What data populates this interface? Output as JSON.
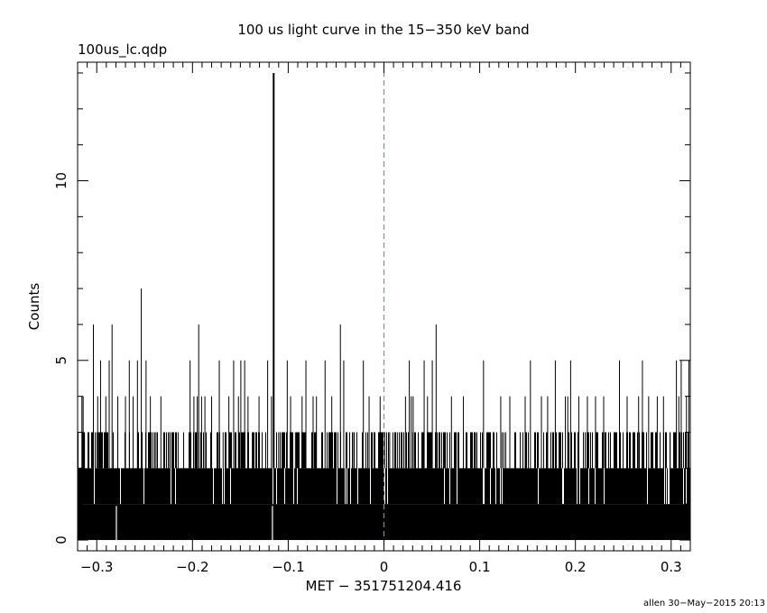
{
  "chart_data": {
    "type": "bar",
    "title": "100 us light curve in the 15−350 keV band",
    "file_label": "100us_lc.qdp",
    "xlabel": "MET − 351751204.416",
    "ylabel": "Counts",
    "footer": "allen 30−May−2015 20:13",
    "xlim": [
      -0.32,
      0.32
    ],
    "ylim": [
      -0.3,
      13.3
    ],
    "x_ticks": [
      -0.3,
      -0.2,
      -0.1,
      0,
      0.1,
      0.2,
      0.3
    ],
    "x_tick_labels": [
      "−0.3",
      "−0.2",
      "−0.1",
      "0",
      "0.1",
      "0.2",
      "0.3"
    ],
    "y_ticks": [
      0,
      5,
      10
    ],
    "y_tick_labels": [
      "0",
      "5",
      "10"
    ],
    "bin_width": 0.0001,
    "marker_x": 0,
    "marker_color": "#3fa7c9",
    "line_color": "#000000",
    "spikes": [
      {
        "x": -0.3155,
        "y": 4
      },
      {
        "x": -0.3142,
        "y": 4
      },
      {
        "x": -0.3128,
        "y": 3
      },
      {
        "x": -0.3035,
        "y": 6
      },
      {
        "x": -0.299,
        "y": 4
      },
      {
        "x": -0.296,
        "y": 5
      },
      {
        "x": -0.2905,
        "y": 4
      },
      {
        "x": -0.287,
        "y": 5
      },
      {
        "x": -0.284,
        "y": 6
      },
      {
        "x": -0.278,
        "y": 4
      },
      {
        "x": -0.27,
        "y": 4
      },
      {
        "x": -0.266,
        "y": 5
      },
      {
        "x": -0.262,
        "y": 4
      },
      {
        "x": -0.2575,
        "y": 5
      },
      {
        "x": -0.2535,
        "y": 7
      },
      {
        "x": -0.2485,
        "y": 5
      },
      {
        "x": -0.244,
        "y": 4
      },
      {
        "x": -0.238,
        "y": 3
      },
      {
        "x": -0.233,
        "y": 4
      },
      {
        "x": -0.225,
        "y": 3
      },
      {
        "x": -0.215,
        "y": 3
      },
      {
        "x": -0.2025,
        "y": 5
      },
      {
        "x": -0.1985,
        "y": 4
      },
      {
        "x": -0.195,
        "y": 4
      },
      {
        "x": -0.1935,
        "y": 6
      },
      {
        "x": -0.1905,
        "y": 4
      },
      {
        "x": -0.187,
        "y": 4
      },
      {
        "x": -0.18,
        "y": 4
      },
      {
        "x": -0.172,
        "y": 5
      },
      {
        "x": -0.168,
        "y": 3
      },
      {
        "x": -0.162,
        "y": 4
      },
      {
        "x": -0.157,
        "y": 5
      },
      {
        "x": -0.152,
        "y": 4
      },
      {
        "x": -0.1495,
        "y": 5
      },
      {
        "x": -0.1455,
        "y": 5
      },
      {
        "x": -0.142,
        "y": 4
      },
      {
        "x": -0.1375,
        "y": 3
      },
      {
        "x": -0.1305,
        "y": 4
      },
      {
        "x": -0.1215,
        "y": 5
      },
      {
        "x": -0.1175,
        "y": 4
      },
      {
        "x": -0.1152,
        "y": 13
      },
      {
        "x": -0.11,
        "y": 3
      },
      {
        "x": -0.101,
        "y": 5
      },
      {
        "x": -0.0975,
        "y": 4
      },
      {
        "x": -0.0925,
        "y": 3
      },
      {
        "x": -0.0855,
        "y": 4
      },
      {
        "x": -0.0815,
        "y": 5
      },
      {
        "x": -0.074,
        "y": 4
      },
      {
        "x": -0.0705,
        "y": 4
      },
      {
        "x": -0.0615,
        "y": 5
      },
      {
        "x": -0.0545,
        "y": 4
      },
      {
        "x": -0.0455,
        "y": 6
      },
      {
        "x": -0.042,
        "y": 5
      },
      {
        "x": -0.0315,
        "y": 3
      },
      {
        "x": -0.0215,
        "y": 5
      },
      {
        "x": -0.0155,
        "y": 4
      },
      {
        "x": -0.004,
        "y": 4
      },
      {
        "x": 0.006,
        "y": 3
      },
      {
        "x": 0.014,
        "y": 3
      },
      {
        "x": 0.0225,
        "y": 4
      },
      {
        "x": 0.0265,
        "y": 5
      },
      {
        "x": 0.0285,
        "y": 4
      },
      {
        "x": 0.0305,
        "y": 4
      },
      {
        "x": 0.042,
        "y": 5
      },
      {
        "x": 0.0455,
        "y": 4
      },
      {
        "x": 0.0505,
        "y": 5
      },
      {
        "x": 0.0545,
        "y": 6
      },
      {
        "x": 0.0625,
        "y": 3
      },
      {
        "x": 0.0705,
        "y": 4
      },
      {
        "x": 0.083,
        "y": 4
      },
      {
        "x": 0.0955,
        "y": 3
      },
      {
        "x": 0.104,
        "y": 5
      },
      {
        "x": 0.1105,
        "y": 3
      },
      {
        "x": 0.122,
        "y": 4
      },
      {
        "x": 0.1315,
        "y": 4
      },
      {
        "x": 0.1475,
        "y": 4
      },
      {
        "x": 0.153,
        "y": 5
      },
      {
        "x": 0.1645,
        "y": 4
      },
      {
        "x": 0.171,
        "y": 4
      },
      {
        "x": 0.179,
        "y": 5
      },
      {
        "x": 0.1895,
        "y": 4
      },
      {
        "x": 0.192,
        "y": 4
      },
      {
        "x": 0.195,
        "y": 5
      },
      {
        "x": 0.2035,
        "y": 4
      },
      {
        "x": 0.2125,
        "y": 4
      },
      {
        "x": 0.221,
        "y": 4
      },
      {
        "x": 0.2295,
        "y": 4
      },
      {
        "x": 0.2365,
        "y": 3
      },
      {
        "x": 0.246,
        "y": 5
      },
      {
        "x": 0.254,
        "y": 4
      },
      {
        "x": 0.266,
        "y": 4
      },
      {
        "x": 0.27,
        "y": 5
      },
      {
        "x": 0.2765,
        "y": 4
      },
      {
        "x": 0.2855,
        "y": 4
      },
      {
        "x": 0.292,
        "y": 4
      },
      {
        "x": 0.299,
        "y": 3
      },
      {
        "x": 0.3055,
        "y": 5
      },
      {
        "x": 0.308,
        "y": 4
      },
      {
        "x": 0.3105,
        "y": 5
      },
      {
        "x": 0.316,
        "y": 4
      },
      {
        "x": 0.3185,
        "y": 5
      }
    ],
    "dips": [
      -0.2795,
      -0.1165
    ]
  }
}
